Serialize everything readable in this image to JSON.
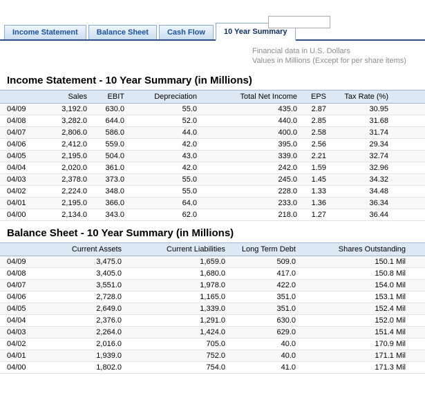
{
  "tabs": [
    {
      "label": "Income Statement",
      "active": false
    },
    {
      "label": "Balance Sheet",
      "active": false
    },
    {
      "label": "Cash Flow",
      "active": false
    },
    {
      "label": "10 Year Summary",
      "active": true
    }
  ],
  "notes": {
    "line1": "Financial data in U.S. Dollars",
    "line2": "Values in Millions (Except for per share items)"
  },
  "income_statement": {
    "title": "Income Statement - 10 Year Summary (in Millions)",
    "columns": [
      "",
      "Sales",
      "EBIT",
      "Depreciation",
      "Total Net Income",
      "EPS",
      "Tax Rate (%)"
    ],
    "rows": [
      [
        "04/09",
        "3,192.0",
        "630.0",
        "55.0",
        "435.0",
        "2.87",
        "30.95"
      ],
      [
        "04/08",
        "3,282.0",
        "644.0",
        "52.0",
        "440.0",
        "2.85",
        "31.68"
      ],
      [
        "04/07",
        "2,806.0",
        "586.0",
        "44.0",
        "400.0",
        "2.58",
        "31.74"
      ],
      [
        "04/06",
        "2,412.0",
        "559.0",
        "42.0",
        "395.0",
        "2.56",
        "29.34"
      ],
      [
        "04/05",
        "2,195.0",
        "504.0",
        "43.0",
        "339.0",
        "2.21",
        "32.74"
      ],
      [
        "04/04",
        "2,020.0",
        "361.0",
        "42.0",
        "242.0",
        "1.59",
        "32.96"
      ],
      [
        "04/03",
        "2,378.0",
        "373.0",
        "55.0",
        "245.0",
        "1.45",
        "34.32"
      ],
      [
        "04/02",
        "2,224.0",
        "348.0",
        "55.0",
        "228.0",
        "1.33",
        "34.48"
      ],
      [
        "04/01",
        "2,195.0",
        "366.0",
        "64.0",
        "233.0",
        "1.36",
        "36.34"
      ],
      [
        "04/00",
        "2,134.0",
        "343.0",
        "62.0",
        "218.0",
        "1.27",
        "36.44"
      ]
    ]
  },
  "balance_sheet": {
    "title": "Balance Sheet - 10 Year Summary (in Millions)",
    "columns": [
      "",
      "Current Assets",
      "Current Liabilities",
      "Long Term Debt",
      "Shares Outstanding"
    ],
    "rows": [
      [
        "04/09",
        "3,475.0",
        "1,659.0",
        "509.0",
        "150.1 Mil"
      ],
      [
        "04/08",
        "3,405.0",
        "1,680.0",
        "417.0",
        "150.8 Mil"
      ],
      [
        "04/07",
        "3,551.0",
        "1,978.0",
        "422.0",
        "154.0 Mil"
      ],
      [
        "04/06",
        "2,728.0",
        "1,165.0",
        "351.0",
        "153.1 Mil"
      ],
      [
        "04/05",
        "2,649.0",
        "1,339.0",
        "351.0",
        "152.4 Mil"
      ],
      [
        "04/04",
        "2,376.0",
        "1,291.0",
        "630.0",
        "152.0 Mil"
      ],
      [
        "04/03",
        "2,264.0",
        "1,424.0",
        "629.0",
        "151.4 Mil"
      ],
      [
        "04/02",
        "2,016.0",
        "705.0",
        "40.0",
        "170.9 Mil"
      ],
      [
        "04/01",
        "1,939.0",
        "752.0",
        "40.0",
        "171.1 Mil"
      ],
      [
        "04/00",
        "1,802.0",
        "754.0",
        "41.0",
        "171.3 Mil"
      ]
    ]
  },
  "colors": {
    "tab_underline": "#2a4d86",
    "tab_text": "#1a52a2",
    "active_tab_text": "#0e2f63",
    "table_header_bg": "#dce8f4",
    "table_header_border": "#9fb6d4",
    "note_text": "#8c8c8c"
  }
}
